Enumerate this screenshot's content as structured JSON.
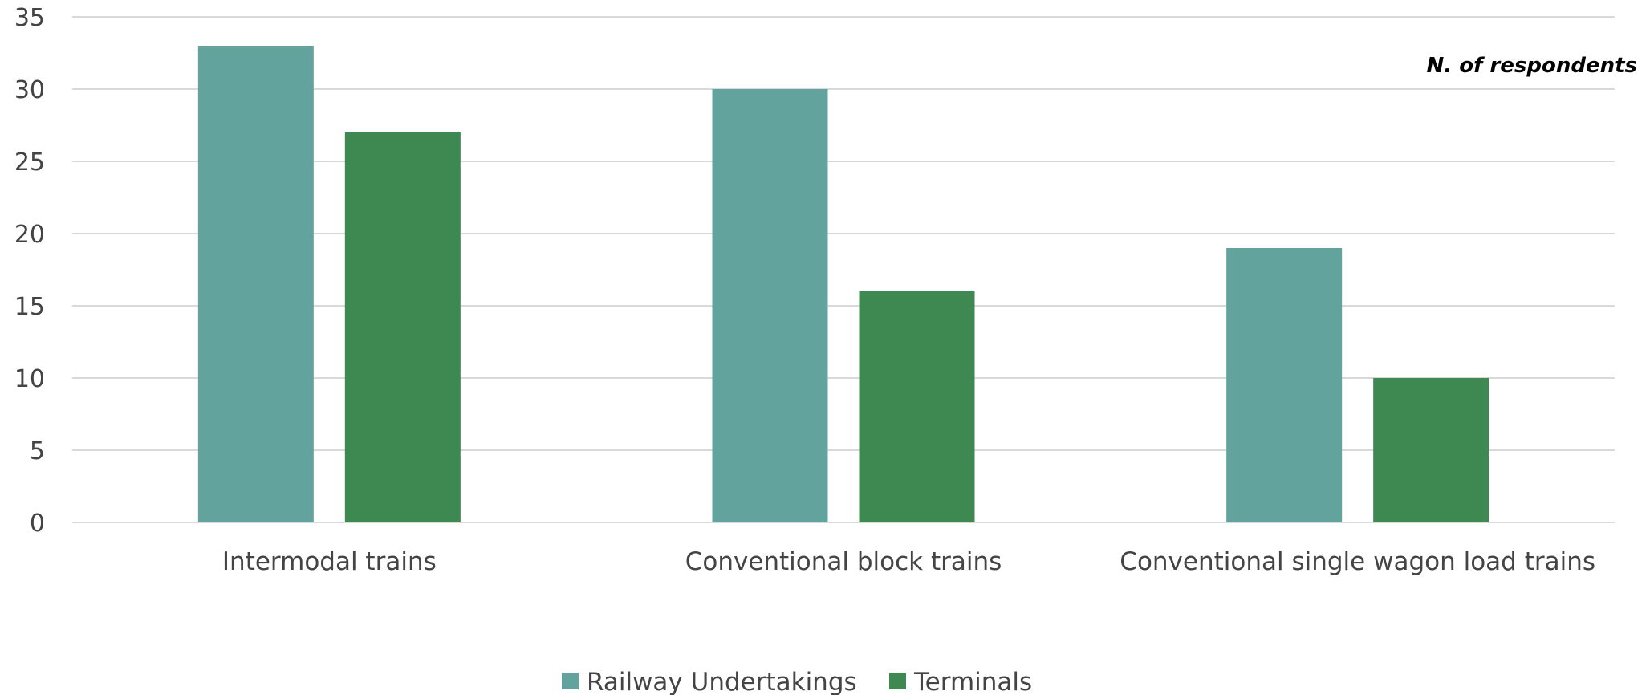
{
  "chart_data": {
    "type": "bar",
    "categories": [
      "Intermodal trains",
      "Conventional block trains",
      "Conventional single wagon load trains"
    ],
    "series": [
      {
        "name": "Railway Undertakings",
        "values": [
          33,
          30,
          19
        ],
        "color": "#63a39e"
      },
      {
        "name": "Terminals",
        "values": [
          27,
          16,
          10
        ],
        "color": "#3e8852"
      }
    ],
    "ylim": [
      0,
      35
    ],
    "yticks": [
      0,
      5,
      10,
      15,
      20,
      25,
      30,
      35
    ],
    "annotation": "N. of respondents",
    "grid": true,
    "legend_position": "bottom"
  }
}
